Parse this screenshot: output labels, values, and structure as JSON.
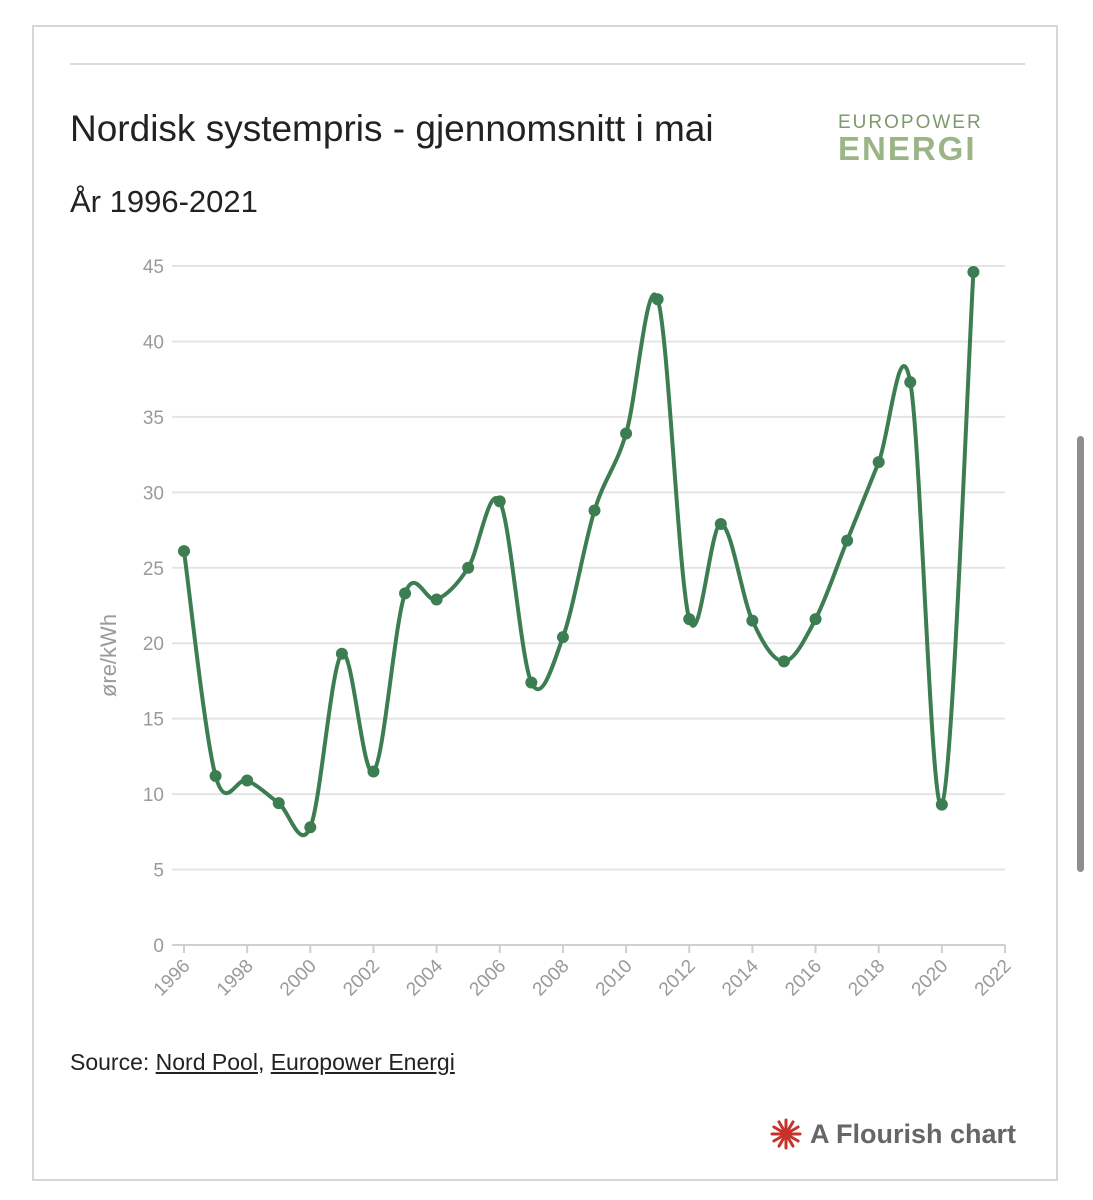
{
  "header": {
    "title": "Nordisk systempris - gjennomsnitt i mai",
    "subtitle": "År 1996-2021",
    "logo_top": "EUROPOWER",
    "logo_bottom": "ENERGI"
  },
  "footer": {
    "source_prefix": "Source: ",
    "source_link_1": "Nord Pool",
    "source_separator": ", ",
    "source_link_2": "Europower Energi",
    "flourish_label": "A Flourish chart",
    "flourish_icon": "flourish-star-icon"
  },
  "colors": {
    "line": "#3c7d52",
    "grid": "#e4e4e4",
    "axis_text": "#9a9a9a",
    "flourish_star": "#c8322b"
  },
  "chart_data": {
    "type": "line",
    "title": "Nordisk systempris - gjennomsnitt i mai",
    "subtitle": "År 1996-2021",
    "xlabel": "",
    "ylabel": "øre/kWh",
    "xlim": [
      1996,
      2022
    ],
    "ylim": [
      0,
      45
    ],
    "x_ticks": [
      1996,
      1998,
      2000,
      2002,
      2004,
      2006,
      2008,
      2010,
      2012,
      2014,
      2016,
      2018,
      2020,
      2022
    ],
    "y_ticks": [
      0,
      5,
      10,
      15,
      20,
      25,
      30,
      35,
      40,
      45
    ],
    "grid": true,
    "curve": "smooth",
    "series": [
      {
        "x": [
          1996,
          1997,
          1998,
          1999,
          2000,
          2001,
          2002,
          2003,
          2004,
          2005,
          2006,
          2007,
          2008,
          2009,
          2010,
          2011,
          2012,
          2013,
          2014,
          2015,
          2016,
          2017,
          2018,
          2019,
          2020,
          2021
        ],
        "values": [
          26.1,
          11.2,
          10.9,
          9.4,
          7.8,
          19.3,
          11.5,
          23.3,
          22.9,
          25.0,
          29.4,
          17.4,
          20.4,
          28.8,
          33.9,
          42.8,
          21.6,
          27.9,
          21.5,
          18.8,
          21.6,
          26.8,
          32.0,
          37.3,
          9.3,
          44.6
        ]
      }
    ]
  }
}
